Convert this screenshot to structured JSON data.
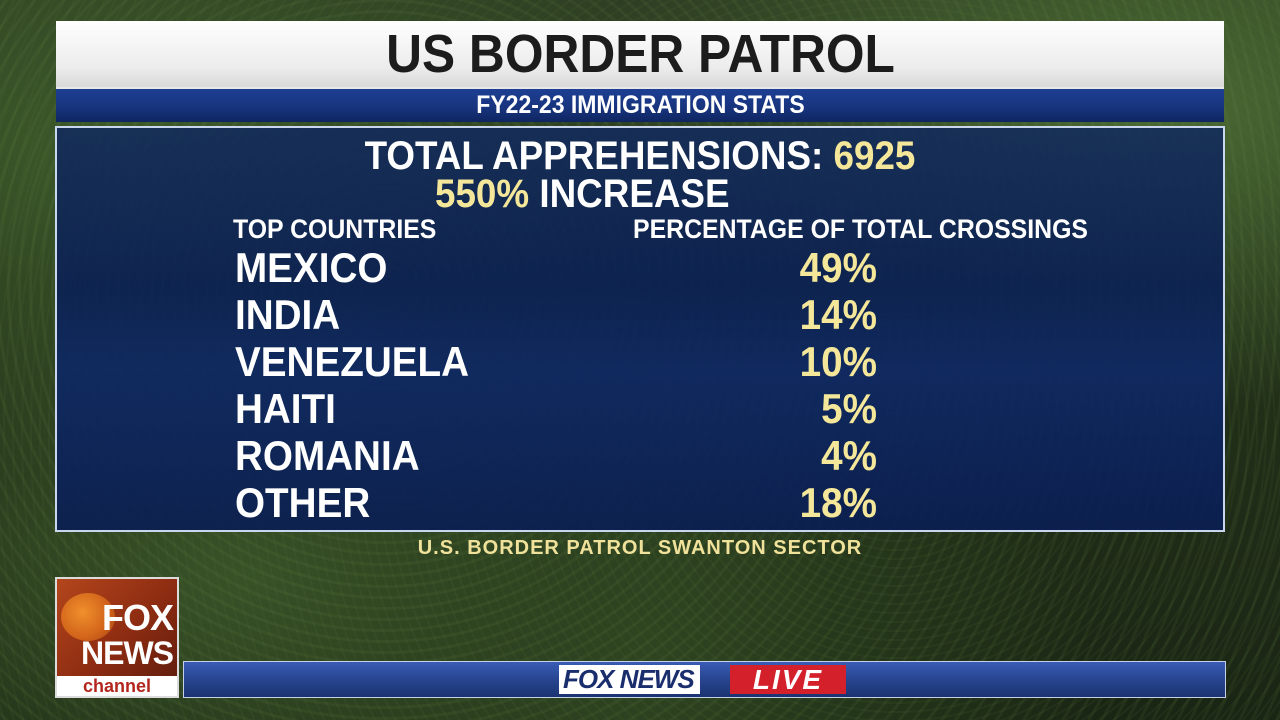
{
  "title": "US BORDER PATROL",
  "subtitle": "FY22-23 IMMIGRATION STATS",
  "total_label": "TOTAL APPREHENSIONS:",
  "total_value": "6925",
  "increase_value": "550%",
  "increase_label": "INCREASE",
  "columns": {
    "left": "TOP COUNTRIES",
    "right": "PERCENTAGE OF TOTAL CROSSINGS"
  },
  "rows": [
    {
      "country": "MEXICO",
      "value": "49%"
    },
    {
      "country": "INDIA",
      "value": "14%"
    },
    {
      "country": "VENEZUELA",
      "value": "10%"
    },
    {
      "country": "HAITI",
      "value": "5%"
    },
    {
      "country": "ROMANIA",
      "value": "4%"
    },
    {
      "country": "OTHER",
      "value": "18%"
    }
  ],
  "source": "U.S. BORDER PATROL SWANTON SECTOR",
  "logo": {
    "line1": "FOX",
    "line2": "NEWS",
    "line3": "channel"
  },
  "ticker": {
    "brand": "FOX NEWS",
    "live": "LIVE"
  },
  "colors": {
    "accent_yellow": "#f5e79a",
    "panel_blue": "#0f2660",
    "live_red": "#d4202a"
  }
}
